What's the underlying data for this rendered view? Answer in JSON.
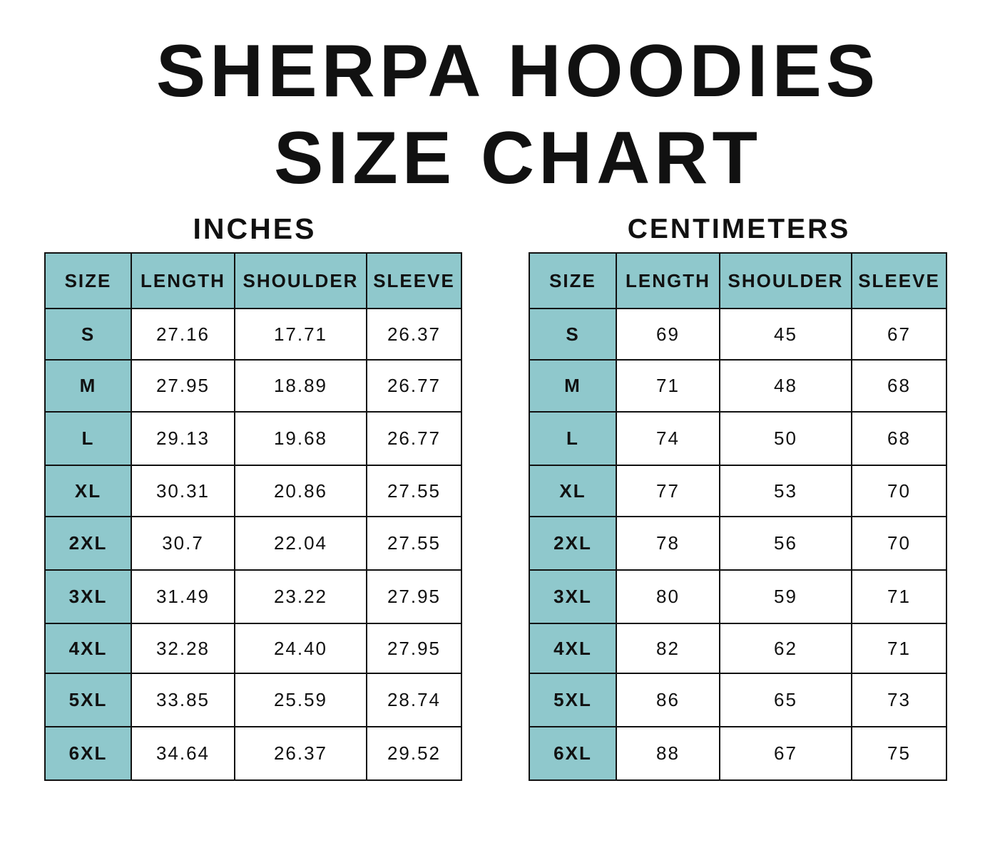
{
  "title_line1": "SHERPA HOODIES",
  "title_line2": "SIZE CHART",
  "colors": {
    "header_fill": "#8fc8cc",
    "border": "#111111",
    "text": "#111111"
  },
  "inches": {
    "label": "INCHES",
    "headers": [
      "SIZE",
      "LENGTH",
      "SHOULDER",
      "SLEEVE"
    ],
    "rows": [
      [
        "S",
        "27.16",
        "17.71",
        "26.37"
      ],
      [
        "M",
        "27.95",
        "18.89",
        "26.77"
      ],
      [
        "L",
        "29.13",
        "19.68",
        "26.77"
      ],
      [
        "XL",
        "30.31",
        "20.86",
        "27.55"
      ],
      [
        "2XL",
        "30.7",
        "22.04",
        "27.55"
      ],
      [
        "3XL",
        "31.49",
        "23.22",
        "27.95"
      ],
      [
        "4XL",
        "32.28",
        "24.40",
        "27.95"
      ],
      [
        "5XL",
        "33.85",
        "25.59",
        "28.74"
      ],
      [
        "6XL",
        "34.64",
        "26.37",
        "29.52"
      ]
    ]
  },
  "centimeters": {
    "label": "CENTIMETERS",
    "headers": [
      "SIZE",
      "LENGTH",
      "SHOULDER",
      "SLEEVE"
    ],
    "rows": [
      [
        "S",
        "69",
        "45",
        "67"
      ],
      [
        "M",
        "71",
        "48",
        "68"
      ],
      [
        "L",
        "74",
        "50",
        "68"
      ],
      [
        "XL",
        "77",
        "53",
        "70"
      ],
      [
        "2XL",
        "78",
        "56",
        "70"
      ],
      [
        "3XL",
        "80",
        "59",
        "71"
      ],
      [
        "4XL",
        "82",
        "62",
        "71"
      ],
      [
        "5XL",
        "86",
        "65",
        "73"
      ],
      [
        "6XL",
        "88",
        "67",
        "75"
      ]
    ]
  }
}
